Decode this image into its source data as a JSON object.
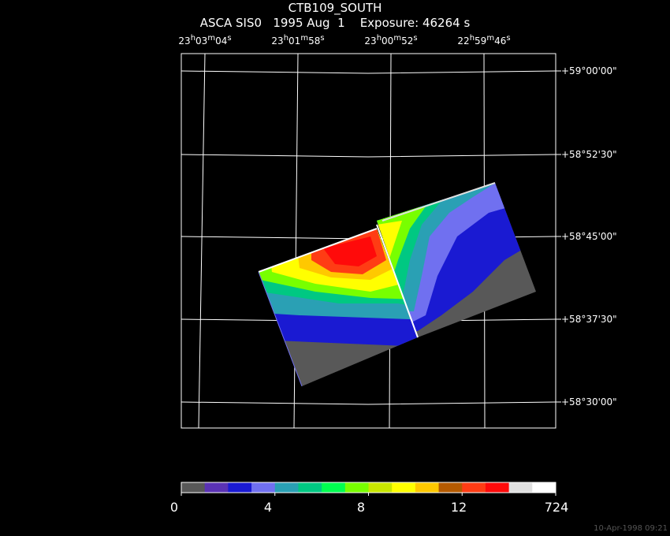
{
  "title": {
    "line1": "CTB109_SOUTH",
    "line2": "ASCA SIS0   1995 Aug  1    Exposure: 46264 s"
  },
  "ra_labels": [
    {
      "h": "23",
      "m": "03",
      "s": "04"
    },
    {
      "h": "23",
      "m": "01",
      "s": "58"
    },
    {
      "h": "23",
      "m": "00",
      "s": "52"
    },
    {
      "h": "22",
      "m": "59",
      "s": "46"
    }
  ],
  "dec_labels": [
    "+59°00'00\"",
    "+58°52'30\"",
    "+58°45'00\"",
    "+58°37'30\"",
    "+58°30'00\""
  ],
  "colorbar": {
    "colors": [
      "#585858",
      "#5a32b4",
      "#1a1ad2",
      "#7070f0",
      "#2aa0b4",
      "#00c882",
      "#00ff50",
      "#78ff00",
      "#c8e600",
      "#ffff00",
      "#ffc800",
      "#b45a00",
      "#ff3c14",
      "#ff0a0a",
      "#e0e0e0",
      "#ffffff"
    ],
    "tick_labels": [
      "0",
      "4",
      "8",
      "12",
      "724"
    ]
  },
  "timestamp": "10-Apr-1998 09:21"
}
